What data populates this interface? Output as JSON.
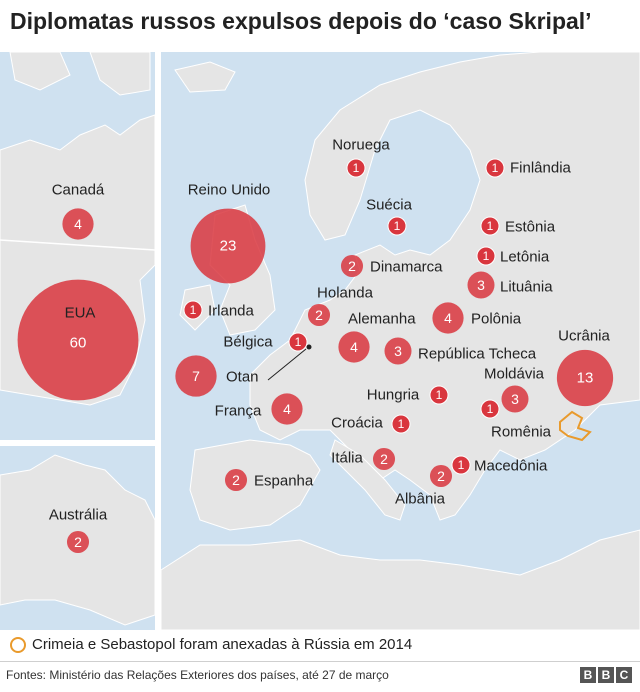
{
  "title": "Diplomatas russos expulsos depois do ‘caso Skripal’",
  "legend": "Crimeia e Sebastopol foram anexadas à Rússia em 2014",
  "source": "Fontes: Ministério das Relações Exteriores dos países, até 27 de março",
  "brand": [
    "B",
    "B",
    "C"
  ],
  "colors": {
    "sea": "#cfe1f0",
    "land": "#e5e5e5",
    "bubble": "#d9363e",
    "crimea": "#e99a2c"
  },
  "countries": [
    {
      "name": "Canadá",
      "value": "4"
    },
    {
      "name": "EUA",
      "value": "60"
    },
    {
      "name": "Austrália",
      "value": "2"
    },
    {
      "name": "Reino Unido",
      "value": "23"
    },
    {
      "name": "Irlanda",
      "value": "1"
    },
    {
      "name": "Noruega",
      "value": "1"
    },
    {
      "name": "Suécia",
      "value": "1"
    },
    {
      "name": "Finlândia",
      "value": "1"
    },
    {
      "name": "Estônia",
      "value": "1"
    },
    {
      "name": "Letônia",
      "value": "1"
    },
    {
      "name": "Lituânia",
      "value": "3"
    },
    {
      "name": "Dinamarca",
      "value": "2"
    },
    {
      "name": "Holanda",
      "value": "2"
    },
    {
      "name": "Alemanha",
      "value": "4"
    },
    {
      "name": "Polônia",
      "value": "4"
    },
    {
      "name": "Bélgica",
      "value": "1"
    },
    {
      "name": "Otan",
      "value": "7"
    },
    {
      "name": "França",
      "value": "4"
    },
    {
      "name": "República Tcheca",
      "value": "3"
    },
    {
      "name": "Ucrânia",
      "value": "13"
    },
    {
      "name": "Moldávia",
      "value": "3"
    },
    {
      "name": "Hungria",
      "value": "1"
    },
    {
      "name": "Romênia",
      "value": "1"
    },
    {
      "name": "Croácia",
      "value": "1"
    },
    {
      "name": "Itália",
      "value": "2"
    },
    {
      "name": "Macedônia",
      "value": "1"
    },
    {
      "name": "Albânia",
      "value": "2"
    },
    {
      "name": "Espanha",
      "value": "2"
    }
  ]
}
